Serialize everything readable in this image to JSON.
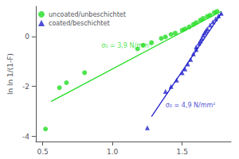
{
  "chart_data": {
    "type": "scatter",
    "ylabel": "ln ln 1/(1-F)",
    "xlim": [
      0.45,
      1.85
    ],
    "ylim": [
      -4.2,
      1.2
    ],
    "xticks": [
      0.5,
      {
        "value": 1.0,
        "label": "1.0"
      },
      1.5
    ],
    "yticks": [
      -4,
      -2,
      0
    ],
    "grid": false,
    "legend": "upper left",
    "series": [
      {
        "type": "line",
        "color": "#22dd22",
        "x": [
          0.56,
          1.78
        ],
        "values": [
          -2.6,
          1.0
        ]
      },
      {
        "type": "line",
        "color": "#2222cc",
        "x": [
          1.28,
          1.78
        ],
        "values": [
          -3.2,
          0.92
        ]
      },
      {
        "name": "uncoated/unbeschichtet",
        "type": "scatter",
        "color": "#22dd22",
        "marker": "circle",
        "x": [
          0.52,
          0.62,
          0.67,
          0.8,
          1.18,
          1.22,
          1.28,
          1.35,
          1.38,
          1.42,
          1.45,
          1.5,
          1.52,
          1.55,
          1.58,
          1.6,
          1.63,
          1.65,
          1.68,
          1.7,
          1.73,
          1.75
        ],
        "values": [
          -3.7,
          -2.05,
          -1.85,
          -1.45,
          -0.5,
          -0.35,
          -0.25,
          -0.08,
          -0.02,
          0.08,
          0.13,
          0.25,
          0.3,
          0.38,
          0.48,
          0.55,
          0.65,
          0.72,
          0.8,
          0.85,
          0.95,
          1.0
        ]
      },
      {
        "name": "coated/beschichtet",
        "type": "scatter",
        "color": "#2222cc",
        "marker": "triangle",
        "x": [
          1.25,
          1.38,
          1.42,
          1.46,
          1.5,
          1.52,
          1.54,
          1.56,
          1.58,
          1.6,
          1.6,
          1.62,
          1.63,
          1.64,
          1.65,
          1.66,
          1.67,
          1.68,
          1.7,
          1.72,
          1.74,
          1.76,
          1.78
        ],
        "values": [
          -3.65,
          -2.2,
          -2.0,
          -1.75,
          -1.45,
          -1.3,
          -1.1,
          -0.92,
          -0.7,
          -0.52,
          -0.42,
          -0.28,
          -0.18,
          -0.08,
          0.05,
          0.14,
          0.22,
          0.3,
          0.45,
          0.58,
          0.7,
          0.82,
          0.92
        ]
      }
    ],
    "annotations": [
      {
        "text": "σ₀ = 3,9 N/mm²",
        "x": 0.92,
        "y": -0.38,
        "color": "#22dd22"
      },
      {
        "text": "σ₀ = 4,9 N/mm²",
        "x": 1.38,
        "y": -2.75,
        "color": "#2222cc"
      }
    ]
  }
}
